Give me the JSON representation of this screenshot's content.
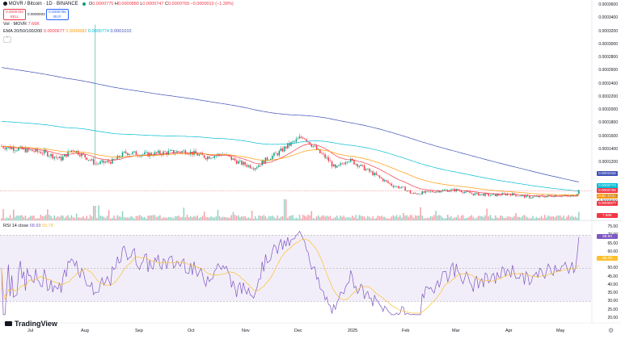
{
  "header": {
    "symbol_title": "MOVR / Bitcoin · 1D · BINANCE",
    "ohlc": {
      "o_label": "O",
      "o": "0.0000775",
      "h_label": "H",
      "h": "0.0000880",
      "l_label": "L",
      "l": "0.0000747",
      "c_label": "C",
      "c": "0.0000769",
      "chg": "−0.0000010 (−1.28%)"
    },
    "sell_price": "0.0000763",
    "sell_label": "SELL",
    "spread": "0.0000003",
    "buy_price": "0.0000766",
    "buy_label": "BUY",
    "colors": {
      "down": "#f23645",
      "up": "#089981",
      "accent": "#2962ff"
    }
  },
  "indicators": {
    "vol_label": "Vol · MOVR",
    "vol_value": "7.66K",
    "ema_label": "EMA 20/50/100/200",
    "ema_values": [
      "0.0000677",
      "0.0000682",
      "0.0000774",
      "0.0001010"
    ],
    "ema_colors": [
      "#f23645",
      "#ff9800",
      "#00bcd4",
      "#3f51b5"
    ],
    "rsi_label": "RSI 14 close",
    "rsi_value": "68.93",
    "rsi_ma": "55.78"
  },
  "price_axis": {
    "ticks": [
      "0.0003600",
      "0.0003400",
      "0.0003200",
      "0.0003000",
      "0.0002800",
      "0.0002600",
      "0.0002400",
      "0.0002200",
      "0.0002000",
      "0.0001800",
      "0.0001600",
      "0.0001400",
      "0.0001200",
      "0.0001000",
      "0.0000800",
      "0.0000600"
    ],
    "labels": [
      {
        "value": "0.0001010",
        "color": "#3f51b5"
      },
      {
        "value": "0.0000774",
        "color": "#00bcd4"
      },
      {
        "value": "0.0000769",
        "color": "#f23645"
      },
      {
        "value": "0.0000682",
        "color": "#ff9800"
      },
      {
        "value": "0.0000677",
        "color": "#f23645"
      },
      {
        "value": "7.66K",
        "color": "#f23645"
      }
    ],
    "countdown": "05:52:59"
  },
  "rsi_axis": {
    "ticks": [
      "75.00",
      "70.00",
      "65.00",
      "60.00",
      "55.00",
      "50.00",
      "45.00",
      "40.00",
      "35.00",
      "30.00",
      "25.00",
      "20.00"
    ],
    "labels": [
      {
        "value": "68.93",
        "color": "#7e57c2"
      },
      {
        "value": "55.78",
        "color": "#fbc02d"
      }
    ]
  },
  "time_axis": [
    "Jul",
    "Aug",
    "Sep",
    "Oct",
    "Nov",
    "Dec",
    "2025",
    "Feb",
    "Mar",
    "Apr",
    "May"
  ],
  "branding": {
    "logo_text": "TradingView"
  }
}
